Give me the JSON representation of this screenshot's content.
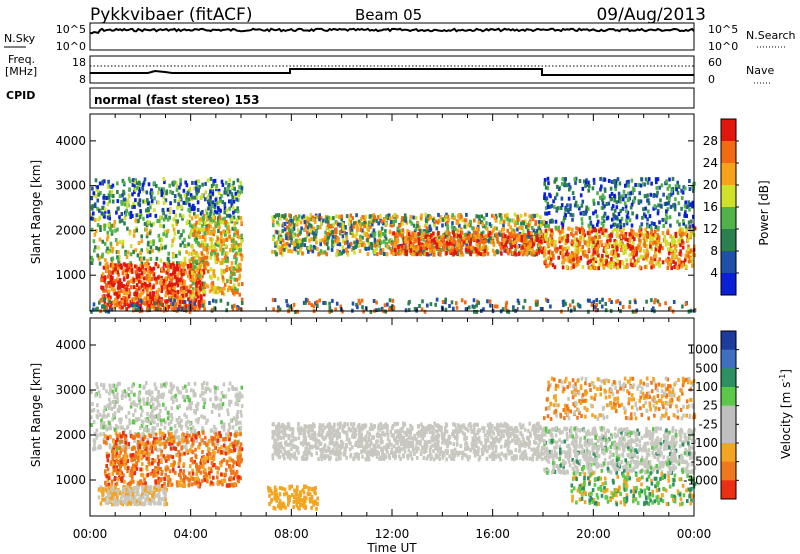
{
  "header": {
    "station": "Pykkvibaer (fitACF)",
    "beam": "Beam 05",
    "date": "09/Aug/2013"
  },
  "nsky_panel": {
    "left_label": "N.Sky",
    "left_ticks": [
      "10^5",
      "10^0"
    ],
    "right_ticks": [
      "10^5",
      "10^0"
    ],
    "right_label": "N.Search"
  },
  "freq_panel": {
    "label_line1": "Freq.",
    "label_line2": "[MHz]",
    "left_ticks": [
      "18",
      "8"
    ],
    "right_ticks": [
      "60",
      "0"
    ],
    "right_label": "Nave"
  },
  "cpid": {
    "label": "CPID",
    "text": "normal (fast stereo) 153"
  },
  "colors": {
    "power_scale": [
      "#0a1fd6",
      "#1e50a8",
      "#2c7f4f",
      "#52b24a",
      "#cfe12a",
      "#f6a21a",
      "#f26a12",
      "#e3160e"
    ],
    "velocity_scale": [
      "#1e3c9c",
      "#3e6fc0",
      "#2e8f62",
      "#5cc84a",
      "#bfbfbf",
      "#bfbfbf",
      "#f3a521",
      "#f0781c",
      "#ea2f12"
    ],
    "ground_scatter": "#c8c8c0"
  },
  "chart_data": [
    {
      "type": "heatmap",
      "name": "power",
      "xlabel": "",
      "ylabel": "Slant Range [km]",
      "x_ticks": [
        "00:00",
        "04:00",
        "08:00",
        "12:00",
        "16:00",
        "20:00",
        "00:00"
      ],
      "y_ticks": [
        "1000",
        "2000",
        "3000",
        "4000"
      ],
      "xlim_hours": [
        0,
        24
      ],
      "ylim_km": [
        200,
        4600
      ],
      "colorbar": {
        "label": "Power [dB]",
        "ticks": [
          "4",
          "8",
          "12",
          "16",
          "20",
          "24",
          "28"
        ]
      },
      "data_gap_hours": [
        6,
        7
      ]
    },
    {
      "type": "heatmap",
      "name": "velocity",
      "xlabel": "Time UT",
      "ylabel": "Slant Range [km]",
      "x_ticks": [
        "00:00",
        "04:00",
        "08:00",
        "12:00",
        "16:00",
        "20:00",
        "00:00"
      ],
      "y_ticks": [
        "1000",
        "2000",
        "3000",
        "4000"
      ],
      "xlim_hours": [
        0,
        24
      ],
      "ylim_km": [
        200,
        4600
      ],
      "colorbar": {
        "label": "Velocity [m s",
        "label_sup": "-1",
        "label_end": "]",
        "ticks": [
          "1000",
          "500",
          "100",
          "25",
          "-25",
          "-100",
          "-500",
          "-1000"
        ]
      },
      "data_gap_hours": [
        6,
        7
      ]
    }
  ]
}
